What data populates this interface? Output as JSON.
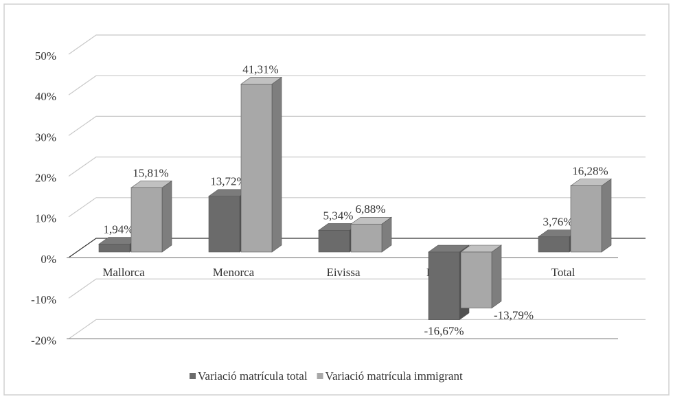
{
  "chart_data": {
    "type": "bar3d",
    "categories": [
      "Mallorca",
      "Menorca",
      "Eivissa",
      "Formentera",
      "Total"
    ],
    "series": [
      {
        "name": "Variació matrícula total",
        "color": "#6b6b6b",
        "values": [
          1.94,
          13.72,
          5.34,
          -16.67,
          3.76
        ],
        "value_labels": [
          "1,94%",
          "13,72%",
          "5,34%",
          "-16,67%",
          "3,76%"
        ]
      },
      {
        "name": "Variació matrícula immigrant",
        "color": "#a8a8a8",
        "values": [
          15.81,
          41.31,
          6.88,
          -13.79,
          16.28
        ],
        "value_labels": [
          "15,81%",
          "41,31%",
          "6,88%",
          "-13,79%",
          "16,28%"
        ]
      }
    ],
    "ylim": [
      -20,
      50
    ],
    "yticks": [
      {
        "value": -20,
        "label": "-20%"
      },
      {
        "value": -10,
        "label": "-10%"
      },
      {
        "value": 0,
        "label": "0%"
      },
      {
        "value": 10,
        "label": "10%"
      },
      {
        "value": 20,
        "label": "20%"
      },
      {
        "value": 30,
        "label": "30%"
      },
      {
        "value": 40,
        "label": "40%"
      },
      {
        "value": 50,
        "label": "50%"
      }
    ],
    "grid": true,
    "legend": "bottom"
  }
}
